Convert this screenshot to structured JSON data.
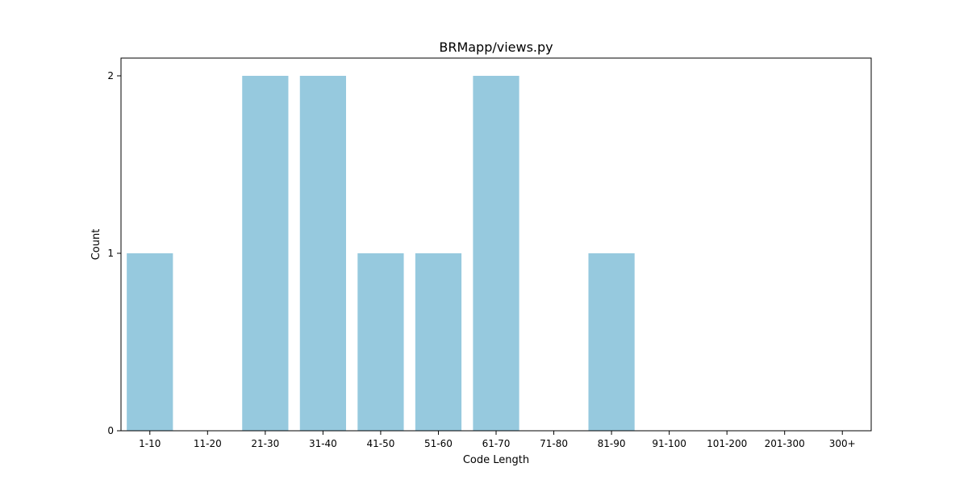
{
  "chart_data": {
    "type": "bar",
    "title": "BRMapp/views.py",
    "xlabel": "Code Length",
    "ylabel": "Count",
    "categories": [
      "1-10",
      "11-20",
      "21-30",
      "31-40",
      "41-50",
      "51-60",
      "61-70",
      "71-80",
      "81-90",
      "91-100",
      "101-200",
      "201-300",
      "300+"
    ],
    "values": [
      1,
      0,
      2,
      2,
      1,
      1,
      2,
      0,
      1,
      0,
      0,
      0,
      0
    ],
    "ylim": [
      0,
      2.1
    ],
    "yticks": [
      0,
      1,
      2
    ],
    "bar_color": "#96c9de",
    "grid": false,
    "legend": "none"
  }
}
